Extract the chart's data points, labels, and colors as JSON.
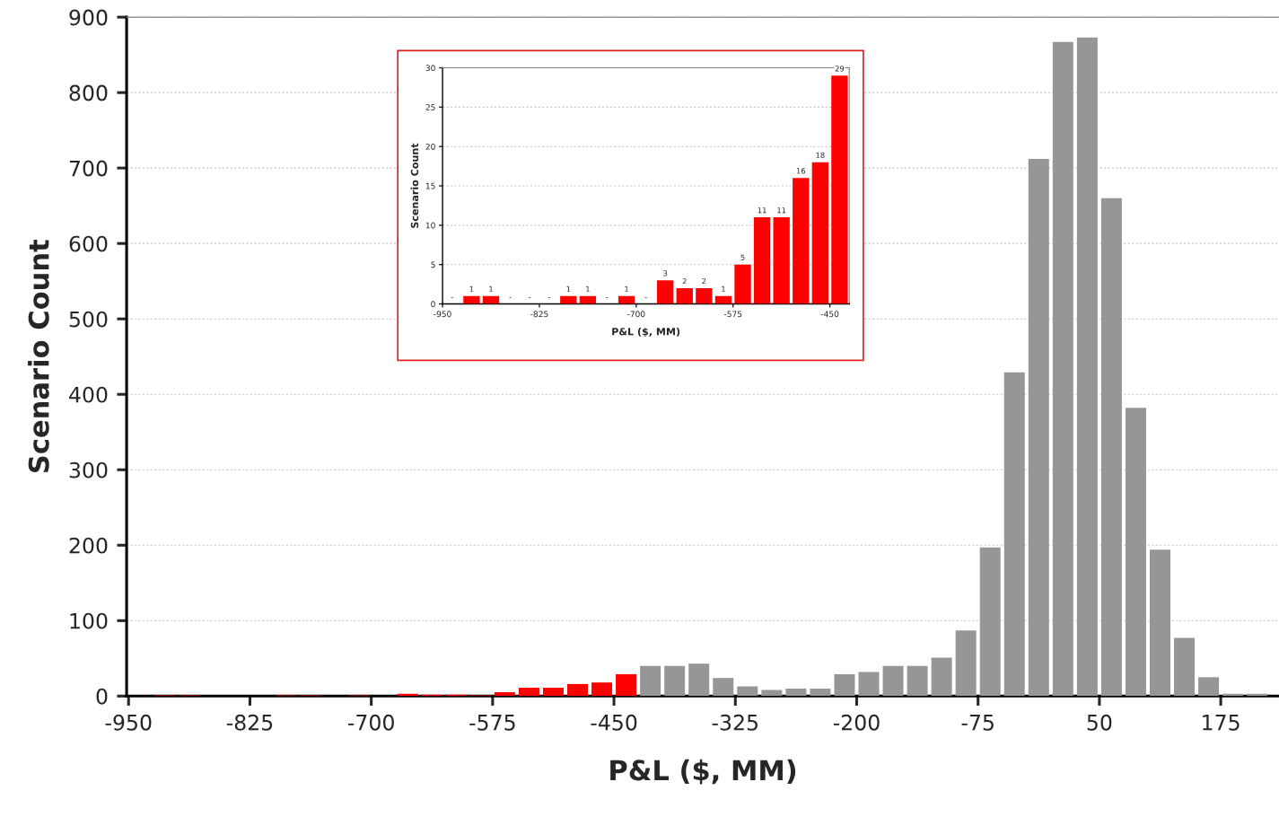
{
  "chart_data": [
    {
      "type": "histogram",
      "xlabel": "P&L ($, MM)",
      "ylabel": "Scenario Count",
      "bins": [
        -950,
        -925,
        -900,
        -875,
        -850,
        -825,
        -800,
        -775,
        -750,
        -725,
        -700,
        -675,
        -650,
        -625,
        -600,
        -575,
        -550,
        -525,
        -500,
        -475,
        -450,
        -425,
        -400,
        -375,
        -350,
        -325,
        -300,
        -275,
        -250,
        -225,
        -200,
        -175,
        -150,
        -125,
        -100,
        -75,
        -50,
        -25,
        0,
        25,
        50,
        75,
        100,
        125,
        150,
        175,
        200,
        225
      ],
      "values": [
        0,
        1,
        1,
        0,
        0,
        0,
        1,
        1,
        0,
        1,
        0,
        3,
        2,
        2,
        1,
        5,
        11,
        11,
        16,
        18,
        29,
        40,
        40,
        43,
        24,
        13,
        8,
        10,
        10,
        29,
        32,
        40,
        40,
        51,
        87,
        197,
        429,
        712,
        867,
        873,
        660,
        382,
        194,
        77,
        25,
        3,
        3
      ],
      "colors": [
        "#ff0000",
        "#ff0000",
        "#ff0000",
        "#ff0000",
        "#ff0000",
        "#ff0000",
        "#ff0000",
        "#ff0000",
        "#ff0000",
        "#ff0000",
        "#ff0000",
        "#ff0000",
        "#ff0000",
        "#ff0000",
        "#ff0000",
        "#ff0000",
        "#ff0000",
        "#ff0000",
        "#ff0000",
        "#ff0000",
        "#ff0000",
        "#969696",
        "#969696",
        "#969696",
        "#969696",
        "#969696",
        "#969696",
        "#969696",
        "#969696",
        "#969696",
        "#969696",
        "#969696",
        "#969696",
        "#969696",
        "#969696",
        "#969696",
        "#969696",
        "#969696",
        "#969696",
        "#969696",
        "#969696",
        "#969696",
        "#969696",
        "#969696",
        "#969696",
        "#969696",
        "#969696"
      ],
      "xlim": [
        -952,
        235
      ],
      "xticks": [
        -950,
        -825,
        -700,
        -575,
        -450,
        -325,
        -200,
        -75,
        50,
        175
      ],
      "ylim": [
        0,
        900
      ],
      "yticks": [
        0,
        100,
        200,
        300,
        400,
        500,
        600,
        700,
        800,
        900
      ],
      "grid": "y"
    },
    {
      "type": "histogram",
      "xlabel": "P&L ($, MM)",
      "ylabel": "Scenario Count",
      "bins": [
        -950,
        -925,
        -900,
        -875,
        -850,
        -825,
        -800,
        -775,
        -750,
        -725,
        -700,
        -675,
        -650,
        -625,
        -600,
        -575,
        -550,
        -525,
        -500,
        -475,
        -450,
        -425
      ],
      "values": [
        0,
        1,
        1,
        0,
        0,
        0,
        1,
        1,
        0,
        1,
        0,
        3,
        2,
        2,
        1,
        5,
        11,
        11,
        16,
        18,
        29
      ],
      "value_labels": [
        "-",
        "1",
        "1",
        "-",
        "-",
        "-",
        "1",
        "1",
        "-",
        "1",
        "-",
        "3",
        "2",
        "2",
        "1",
        "5",
        "11",
        "11",
        "16",
        "18",
        "29"
      ],
      "colors": [
        "#ff0000",
        "#ff0000",
        "#ff0000",
        "#ff0000",
        "#ff0000",
        "#ff0000",
        "#ff0000",
        "#ff0000",
        "#ff0000",
        "#ff0000",
        "#ff0000",
        "#ff0000",
        "#ff0000",
        "#ff0000",
        "#ff0000",
        "#ff0000",
        "#ff0000",
        "#ff0000",
        "#ff0000",
        "#ff0000",
        "#ff0000"
      ],
      "xlim": [
        -950,
        -425
      ],
      "xticks": [
        -950,
        -825,
        -700,
        -575,
        -450
      ],
      "ylim": [
        0,
        30
      ],
      "yticks": [
        0,
        5,
        10,
        15,
        20,
        25,
        30
      ],
      "grid": "y"
    }
  ]
}
